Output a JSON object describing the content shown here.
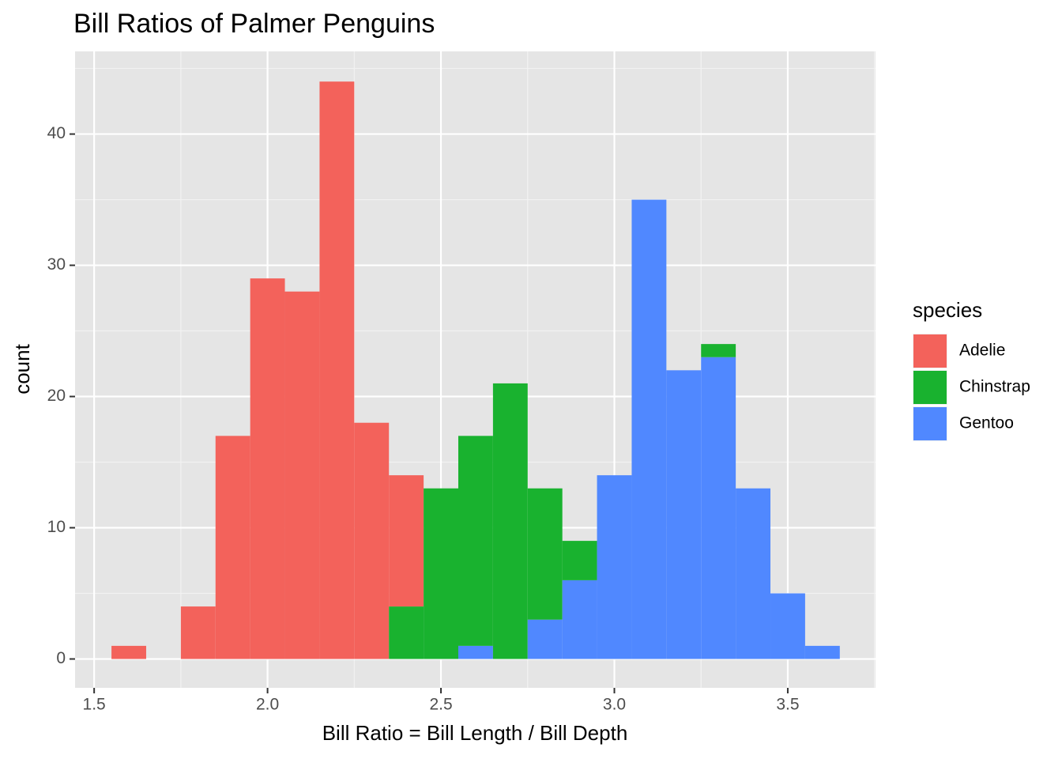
{
  "chart_data": {
    "type": "histogram",
    "stacked": true,
    "title": "Bill Ratios of Palmer Penguins",
    "x_label": "Bill Ratio = Bill Length / Bill Depth",
    "y_label": "count",
    "legend_title": "species",
    "legend_position": "right",
    "grid": true,
    "bins": [
      1.55,
      1.65,
      1.75,
      1.85,
      1.95,
      2.05,
      2.15,
      2.25,
      2.35,
      2.45,
      2.55,
      2.65,
      2.75,
      2.85,
      2.95,
      3.05,
      3.15,
      3.25,
      3.35,
      3.45,
      3.55,
      3.65
    ],
    "series": [
      {
        "name": "Adelie",
        "color": "#f3625b",
        "values": [
          1,
          0,
          4,
          17,
          29,
          28,
          44,
          18,
          10,
          0,
          0,
          0,
          0,
          0,
          0,
          0,
          0,
          0,
          0,
          0,
          0
        ]
      },
      {
        "name": "Chinstrap",
        "color": "#19b22f",
        "values": [
          0,
          0,
          0,
          0,
          0,
          0,
          0,
          0,
          4,
          13,
          16,
          21,
          10,
          3,
          0,
          0,
          0,
          1,
          0,
          0,
          0
        ]
      },
      {
        "name": "Gentoo",
        "color": "#5088ff",
        "values": [
          0,
          0,
          0,
          0,
          0,
          0,
          0,
          0,
          0,
          0,
          1,
          0,
          3,
          6,
          14,
          35,
          22,
          23,
          13,
          5,
          1
        ]
      }
    ],
    "xlim": [
      1.445,
      3.753
    ],
    "ylim": [
      -2.2,
      46.3
    ],
    "xticks": [
      1.5,
      {
        "value": 2,
        "label": "2.0"
      },
      2.5,
      {
        "value": 3,
        "label": "3.0"
      },
      3.5
    ],
    "yticks": [
      0,
      10,
      20,
      30,
      40
    ]
  }
}
